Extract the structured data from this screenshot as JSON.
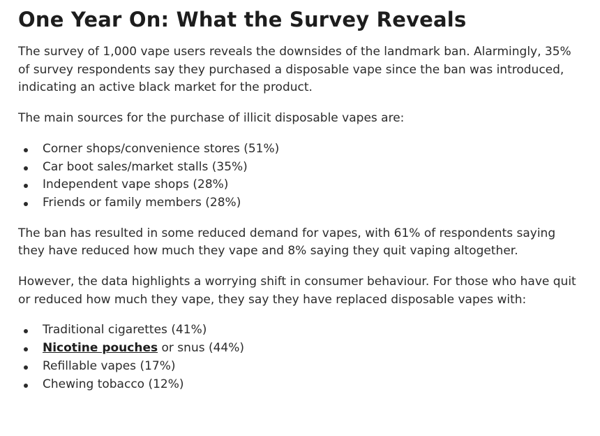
{
  "article": {
    "heading": "One Year On: What the Survey Reveals",
    "paragraphs": [
      "The survey of 1,000 vape users reveals the downsides of the landmark ban. Alarmingly, 35% of survey respondents say they purchased a disposable vape since the ban was introduced, indicating an active black market for the product.",
      "The main sources for the purchase of illicit disposable vapes are:",
      "The ban has resulted in some reduced demand for vapes, with 61% of respondents saying they have reduced how much they vape and 8% saying they quit vaping altogether.",
      "However, the data highlights a worrying shift in consumer behaviour. For those who have quit or reduced how much they vape, they say they have replaced disposable vapes with:"
    ],
    "lists": [
      [
        "Corner shops/convenience stores (51%)",
        "Car boot sales/market stalls (35%)",
        "Independent vape shops (28%)",
        "Friends or family members (28%)"
      ],
      [
        "Traditional cigarettes (41%)",
        {
          "link": "Nicotine pouches",
          "text": "or snus (44%)"
        },
        "Refillable vapes (17%)",
        "Chewing tobacco (12%)"
      ]
    ]
  }
}
